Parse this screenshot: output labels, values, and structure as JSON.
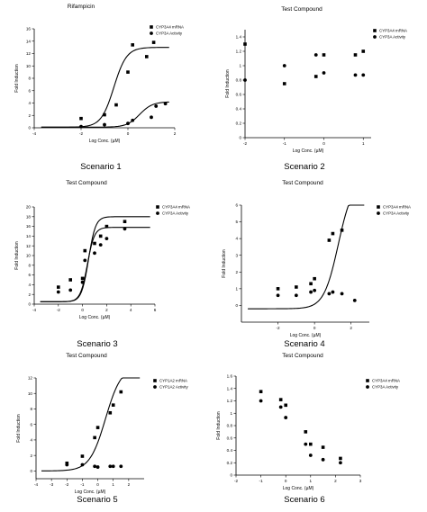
{
  "chart_data": [
    {
      "type": "scatter",
      "title": "Rifampicin",
      "scenario": "Scenario 1",
      "xlabel": "Log Conc. (µM)",
      "ylabel": "Fold Induction",
      "xlim": [
        -4,
        2
      ],
      "ylim": [
        0,
        16
      ],
      "xticks": [
        -4,
        -2,
        0,
        2
      ],
      "yticks": [
        0,
        2,
        4,
        6,
        8,
        10,
        12,
        14,
        16
      ],
      "legend_position": "top-right",
      "series": [
        {
          "name": "CYP3A4 mRNA",
          "marker": "square",
          "x": [
            -2,
            -1,
            -0.5,
            0,
            0.2,
            0.8,
            1.1
          ],
          "y": [
            1.5,
            2.1,
            3.7,
            9,
            13.4,
            11.5,
            13.8
          ],
          "fit": {
            "bottom": 0.1,
            "top": 13,
            "ec50": -0.6,
            "hill": 1.6
          }
        },
        {
          "name": "CYP3A Activity",
          "marker": "circle",
          "x": [
            -2,
            -1,
            0,
            0.2,
            1,
            1.2,
            1.6
          ],
          "y": [
            0.2,
            0.5,
            0.7,
            1.2,
            1.7,
            3.5,
            3.9
          ],
          "fit": {
            "bottom": 0.1,
            "top": 4.2,
            "ec50": 0.5,
            "hill": 1.6
          }
        }
      ]
    },
    {
      "type": "scatter",
      "title": "Test Compound",
      "scenario": "Scenario 2",
      "xlabel": "Log Conc. (µM)",
      "ylabel": "Fold Induction",
      "xlim": [
        -2,
        1.2
      ],
      "ylim": [
        0,
        1.5
      ],
      "xticks": [
        -2,
        -1,
        0,
        1
      ],
      "yticks": [
        0,
        0.2,
        0.4,
        0.6,
        0.8,
        1.0,
        1.2,
        1.4
      ],
      "legend_position": "top-right",
      "series": [
        {
          "name": "CYP3A4 mRNA",
          "marker": "square",
          "x": [
            -2,
            -1,
            -0.2,
            0,
            0.8,
            1
          ],
          "y": [
            1.3,
            0.75,
            0.85,
            1.15,
            1.15,
            1.2
          ],
          "fit": null
        },
        {
          "name": "CYP3A Activity",
          "marker": "circle",
          "x": [
            -2,
            -1,
            -0.2,
            0,
            0.8,
            1
          ],
          "y": [
            0.8,
            1.0,
            1.15,
            0.9,
            0.87,
            0.87
          ],
          "fit": null
        }
      ]
    },
    {
      "type": "scatter",
      "title": "Test Compound",
      "scenario": "Scenario 3",
      "xlabel": "Log Conc. (µM)",
      "ylabel": "Fold Induction",
      "xlim": [
        -4,
        6
      ],
      "ylim": [
        0,
        20
      ],
      "xticks": [
        -4,
        -2,
        0,
        2,
        4,
        6
      ],
      "yticks": [
        0,
        2,
        4,
        6,
        8,
        10,
        12,
        14,
        16,
        18,
        20
      ],
      "legend_position": "top-right",
      "series": [
        {
          "name": "CYP3A4 mRNA",
          "marker": "square",
          "x": [
            -2,
            -1,
            0,
            0.2,
            1,
            1.5,
            2,
            3.5
          ],
          "y": [
            3.5,
            5,
            5.3,
            11,
            12.5,
            14,
            16,
            17
          ],
          "fit": {
            "bottom": 0.5,
            "top": 18,
            "ec50": 0.5,
            "hill": 1.5
          }
        },
        {
          "name": "CYP3A Activity",
          "marker": "circle",
          "x": [
            -2,
            -1,
            0,
            0.2,
            1,
            1.5,
            2,
            3.5
          ],
          "y": [
            2.5,
            2.9,
            4.5,
            9,
            10.5,
            12.2,
            13.5,
            15.5
          ],
          "fit": {
            "bottom": 0.5,
            "top": 15.8,
            "ec50": 0.4,
            "hill": 1.5
          }
        }
      ]
    },
    {
      "type": "scatter",
      "title": "Test Compound",
      "scenario": "Scenario 4",
      "xlabel": "Log Conc. (µM)",
      "ylabel": "Fold Induction",
      "xlim": [
        -4,
        3
      ],
      "ylim": [
        -1,
        6
      ],
      "xticks": [
        -2,
        0,
        2
      ],
      "yticks": [
        0,
        1,
        2,
        3,
        4,
        5,
        6
      ],
      "legend_position": "top-right",
      "series": [
        {
          "name": "CYP3A4 mRNA",
          "marker": "square",
          "x": [
            -2,
            -1,
            -0.2,
            0,
            0.8,
            1,
            1.5
          ],
          "y": [
            1,
            1.1,
            1.3,
            1.6,
            3.9,
            4.3,
            4.5
          ],
          "fit": {
            "bottom": -0.2,
            "top": 7.5,
            "ec50": 1.3,
            "hill": 1.1
          }
        },
        {
          "name": "CYP3A Activity",
          "marker": "circle",
          "x": [
            -2,
            -1,
            -0.2,
            0,
            0.8,
            1,
            1.5,
            2.2
          ],
          "y": [
            0.6,
            0.6,
            0.8,
            0.9,
            0.7,
            0.8,
            0.7,
            0.3
          ],
          "fit": null
        }
      ]
    },
    {
      "type": "scatter",
      "title": "Test Compound",
      "scenario": "Scenario 5",
      "xlabel": "Log Conc. (µM)",
      "ylabel": "Fold Induction",
      "xlim": [
        -4,
        3
      ],
      "ylim": [
        -1,
        12
      ],
      "xticks": [
        -4,
        -3,
        -2,
        -1,
        0,
        1,
        2
      ],
      "yticks": [
        0,
        2,
        4,
        6,
        8,
        10,
        12
      ],
      "legend_position": "top-right",
      "series": [
        {
          "name": "CYP1A2 mRNA",
          "marker": "square",
          "x": [
            -2,
            -1,
            -0.2,
            0,
            0.8,
            1,
            1.5
          ],
          "y": [
            1.0,
            1.9,
            4.3,
            5.6,
            7.5,
            8.5,
            10.2
          ],
          "fit": {
            "bottom": 0,
            "top": 13.5,
            "ec50": 0.5,
            "hill": 0.85
          }
        },
        {
          "name": "CYP1A2 Activity",
          "marker": "circle",
          "x": [
            -2,
            -1,
            -0.2,
            0,
            0.8,
            1,
            1.5
          ],
          "y": [
            0.8,
            0.8,
            0.6,
            0.5,
            0.6,
            0.6,
            0.6
          ],
          "fit": null
        }
      ]
    },
    {
      "type": "scatter",
      "title": "Test Compound",
      "scenario": "Scenario 6",
      "xlabel": "Log Conc. (µM)",
      "ylabel": "Fold Induction",
      "xlim": [
        -2,
        3
      ],
      "ylim": [
        0,
        1.6
      ],
      "xticks": [
        -2,
        -1,
        0,
        1,
        2,
        3
      ],
      "yticks": [
        0,
        0.2,
        0.4,
        0.6,
        0.8,
        1.0,
        1.2,
        1.4,
        1.6
      ],
      "legend_position": "top-right",
      "series": [
        {
          "name": "CYP3A4 mRNA",
          "marker": "square",
          "x": [
            -1,
            -0.2,
            0,
            0.8,
            1,
            1.5,
            2.2
          ],
          "y": [
            1.35,
            1.22,
            1.13,
            0.7,
            0.5,
            0.45,
            0.27
          ],
          "fit": null
        },
        {
          "name": "CYP3A Activity",
          "marker": "circle",
          "x": [
            -1,
            -0.2,
            0,
            0.8,
            1,
            1.5,
            2.2
          ],
          "y": [
            1.2,
            1.1,
            0.93,
            0.5,
            0.32,
            0.25,
            0.2
          ],
          "fit": null
        }
      ]
    }
  ]
}
